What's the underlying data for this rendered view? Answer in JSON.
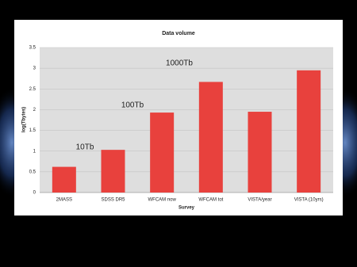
{
  "chart_data": {
    "type": "bar",
    "title": "Data volume",
    "x_label": "Survey",
    "y_label": "log(Tbytes)",
    "categories": [
      "2MASS",
      "SDSS DR5",
      "WFCAM now",
      "WFCAM tot",
      "VISTA/year",
      "VISTA (10yrs)"
    ],
    "values": [
      0.62,
      1.03,
      1.93,
      2.67,
      1.95,
      2.95
    ],
    "color": "#e8413d",
    "ylim": [
      0,
      3.5
    ],
    "yticks": [
      0,
      0.5,
      1,
      1.5,
      2,
      2.5,
      3,
      3.5
    ],
    "grid": true,
    "annotations": [
      "10Tb",
      "100Tb",
      "1000Tb"
    ]
  }
}
